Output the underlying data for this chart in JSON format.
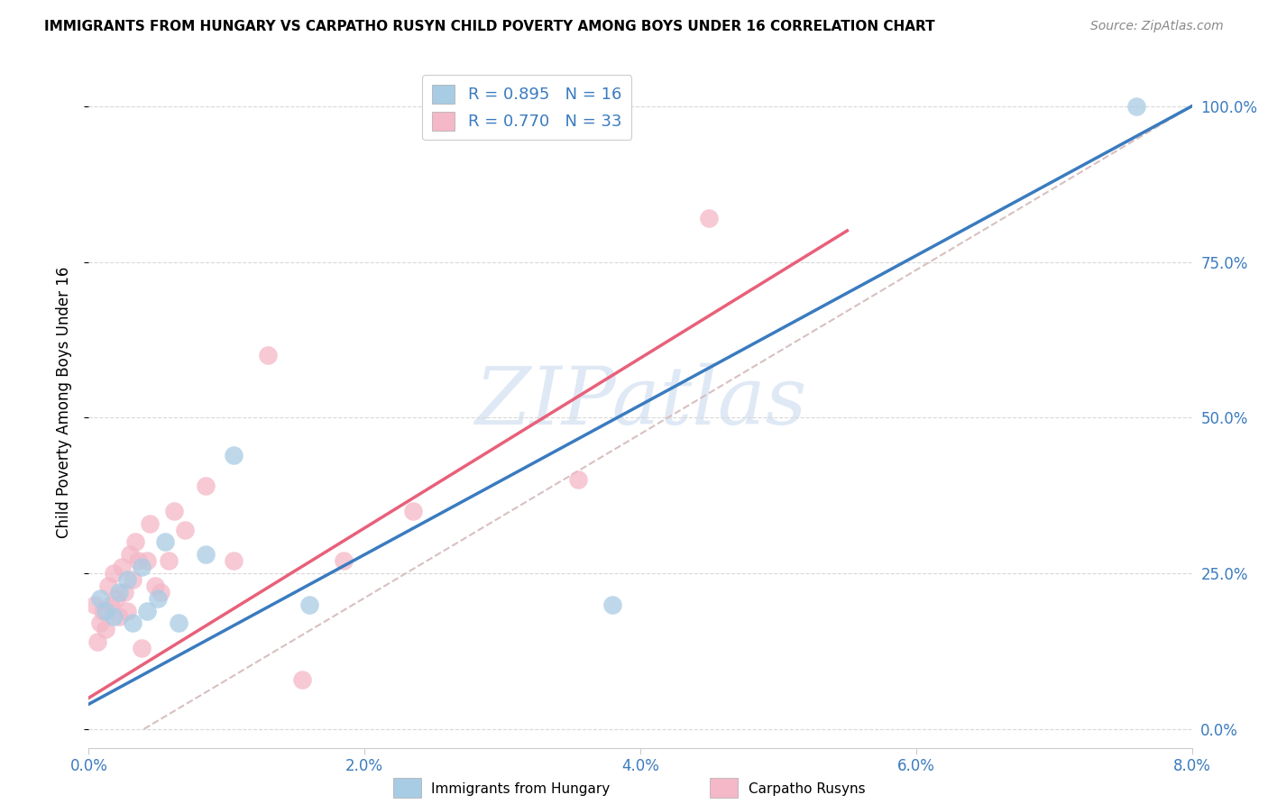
{
  "title": "IMMIGRANTS FROM HUNGARY VS CARPATHO RUSYN CHILD POVERTY AMONG BOYS UNDER 16 CORRELATION CHART",
  "source": "Source: ZipAtlas.com",
  "ylabel": "Child Poverty Among Boys Under 16",
  "xlim": [
    0.0,
    8.0
  ],
  "ylim": [
    -3.0,
    108.0
  ],
  "yticks": [
    0,
    25,
    50,
    75,
    100
  ],
  "ytick_labels": [
    "0.0%",
    "25.0%",
    "50.0%",
    "75.0%",
    "100.0%"
  ],
  "xticks": [
    0.0,
    2.0,
    4.0,
    6.0,
    8.0
  ],
  "xtick_labels": [
    "0.0%",
    "2.0%",
    "4.0%",
    "6.0%",
    "8.0%"
  ],
  "legend1_R": "R = 0.895",
  "legend1_N": "N = 16",
  "legend2_R": "R = 0.770",
  "legend2_N": "N = 33",
  "blue_color": "#a8cce4",
  "pink_color": "#f4b8c8",
  "blue_line_color": "#3a7bbf",
  "pink_line_color": "#e8607a",
  "watermark": "ZIPatlas",
  "blue_line_x0": 0.0,
  "blue_line_y0": 4.0,
  "blue_line_x1": 8.0,
  "blue_line_y1": 100.0,
  "pink_line_x0": 0.0,
  "pink_line_y0": 5.0,
  "pink_line_x1": 5.5,
  "pink_line_y1": 80.0,
  "ref_line_x0": 0.4,
  "ref_line_y0": 0.0,
  "ref_line_x1": 8.0,
  "ref_line_y1": 100.0,
  "blue_scatter_x": [
    0.08,
    0.12,
    0.18,
    0.22,
    0.28,
    0.32,
    0.38,
    0.42,
    0.5,
    0.55,
    0.65,
    0.85,
    1.05,
    1.6,
    3.8,
    7.6
  ],
  "blue_scatter_y": [
    21,
    19,
    18,
    22,
    24,
    17,
    26,
    19,
    21,
    30,
    17,
    28,
    44,
    20,
    20,
    100
  ],
  "pink_scatter_x": [
    0.04,
    0.06,
    0.08,
    0.1,
    0.12,
    0.14,
    0.16,
    0.18,
    0.2,
    0.22,
    0.24,
    0.26,
    0.28,
    0.3,
    0.32,
    0.34,
    0.36,
    0.38,
    0.42,
    0.44,
    0.48,
    0.52,
    0.58,
    0.62,
    0.7,
    0.85,
    1.05,
    1.3,
    1.55,
    1.85,
    2.35,
    3.55,
    4.5
  ],
  "pink_scatter_y": [
    20,
    14,
    17,
    19,
    16,
    23,
    20,
    25,
    21,
    18,
    26,
    22,
    19,
    28,
    24,
    30,
    27,
    13,
    27,
    33,
    23,
    22,
    27,
    35,
    32,
    39,
    27,
    60,
    8,
    27,
    35,
    40,
    82
  ]
}
